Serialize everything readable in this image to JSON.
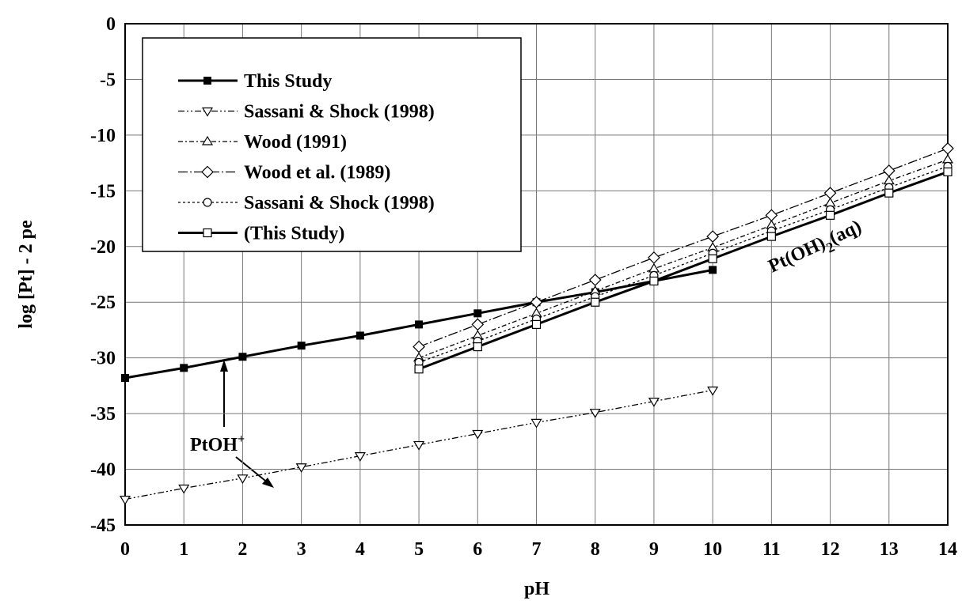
{
  "chart_data": {
    "type": "line",
    "x_label": "pH",
    "y_label": "log [Pt] - 2 pe",
    "x": [
      0,
      1,
      2,
      3,
      4,
      5,
      6,
      7,
      8,
      9,
      10,
      11,
      12,
      13,
      14
    ],
    "xlim": [
      0,
      14
    ],
    "xticks": [
      0,
      1,
      2,
      3,
      4,
      5,
      6,
      7,
      8,
      9,
      10,
      11,
      12,
      13,
      14
    ],
    "ylim": [
      -45,
      0
    ],
    "yticks": [
      0,
      -5,
      -10,
      -15,
      -20,
      -25,
      -30,
      -35,
      -40,
      -45
    ],
    "grid": true,
    "legend": "upper left",
    "series": [
      {
        "name": "This Study",
        "color": "#000000",
        "marker": "square-filled",
        "line": "solid",
        "values": [
          -31.8,
          -30.9,
          -29.9,
          -28.9,
          -28,
          -27,
          -26,
          -25,
          -24.1,
          -23.1,
          -22.1,
          null,
          null,
          null,
          null
        ]
      },
      {
        "name": "Sassani & Shock (1998)",
        "color": "#000000",
        "marker": "triangle-down",
        "line": "dash-dot-dot",
        "values": [
          -42.7,
          -41.7,
          -40.8,
          -39.8,
          -38.8,
          -37.8,
          -36.8,
          -35.8,
          -34.9,
          -33.9,
          -32.9,
          null,
          null,
          null,
          null
        ]
      },
      {
        "name": "Wood (1991)",
        "color": "#000000",
        "marker": "triangle-up",
        "line": "dash-dot",
        "values": [
          null,
          null,
          null,
          null,
          null,
          -30,
          -28,
          -26,
          -24,
          -22,
          -20.1,
          -18.1,
          -16.1,
          -14.1,
          -12.2
        ]
      },
      {
        "name": "Wood et al.  (1989)",
        "color": "#000000",
        "marker": "diamond",
        "line": "long-dash-dot",
        "values": [
          null,
          null,
          null,
          null,
          null,
          -29,
          -27,
          -25,
          -23,
          -21,
          -19.1,
          -17.2,
          -15.2,
          -13.2,
          -11.2
        ]
      },
      {
        "name": "Sassani & Shock (1998)",
        "color": "#000000",
        "marker": "circle",
        "line": "dotted",
        "values": [
          null,
          null,
          null,
          null,
          null,
          -30.4,
          -28.5,
          -26.5,
          -24.5,
          -22.6,
          -20.6,
          -18.6,
          -16.7,
          -14.7,
          -12.8
        ]
      },
      {
        "name": "(This Study)",
        "color": "#000000",
        "marker": "square",
        "line": "solid",
        "values": [
          null,
          null,
          null,
          null,
          null,
          -31,
          -29,
          -27,
          -25,
          -23.1,
          -21.1,
          -19.1,
          -17.2,
          -15.2,
          -13.3
        ]
      }
    ],
    "annotations": [
      {
        "parts": [
          "PtOH",
          "+"
        ]
      },
      {
        "parts": [
          "Pt(OH)",
          "2",
          "(aq)"
        ]
      }
    ]
  }
}
